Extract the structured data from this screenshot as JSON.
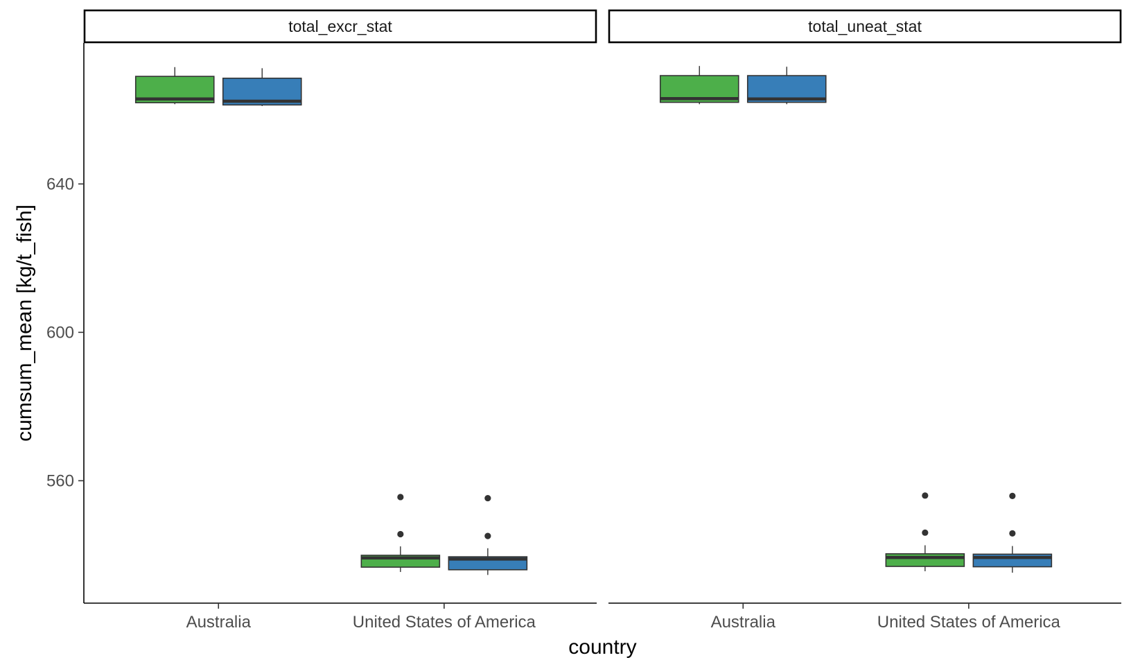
{
  "chart_data": {
    "type": "boxplot",
    "facet_panels": [
      "total_excr_stat",
      "total_uneat_stat"
    ],
    "xlabel": "country",
    "ylabel": "cumsum_mean [kg/t_fish]",
    "categories": [
      "Australia",
      "United States of America"
    ],
    "y_ticks": [
      560,
      600,
      640
    ],
    "ylim": [
      527,
      678
    ],
    "grid": false,
    "legend": "none",
    "series_colors": [
      "#4daf4a",
      "#377eb8"
    ],
    "panels": [
      {
        "facet": "total_excr_stat",
        "boxes": [
          {
            "category": "Australia",
            "series": 0,
            "min": 661.5,
            "q1": 661.9,
            "median": 662.9,
            "q3": 669.0,
            "max": 671.5,
            "outliers": []
          },
          {
            "category": "Australia",
            "series": 1,
            "min": 661.0,
            "q1": 661.3,
            "median": 662.3,
            "q3": 668.5,
            "max": 671.2,
            "outliers": []
          },
          {
            "category": "United States of America",
            "series": 0,
            "min": 535.4,
            "q1": 536.7,
            "median": 539.2,
            "q3": 539.9,
            "max": 542.3,
            "outliers": [
              545.6,
              555.6
            ]
          },
          {
            "category": "United States of America",
            "series": 1,
            "min": 534.6,
            "q1": 536.0,
            "median": 538.9,
            "q3": 539.5,
            "max": 541.8,
            "outliers": [
              545.1,
              555.3
            ]
          }
        ]
      },
      {
        "facet": "total_uneat_stat",
        "boxes": [
          {
            "category": "Australia",
            "series": 0,
            "min": 661.5,
            "q1": 662.0,
            "median": 663.0,
            "q3": 669.2,
            "max": 671.8,
            "outliers": []
          },
          {
            "category": "Australia",
            "series": 1,
            "min": 661.5,
            "q1": 662.0,
            "median": 662.9,
            "q3": 669.2,
            "max": 671.6,
            "outliers": []
          },
          {
            "category": "United States of America",
            "series": 0,
            "min": 535.6,
            "q1": 536.9,
            "median": 539.3,
            "q3": 540.3,
            "max": 542.6,
            "outliers": [
              546.0,
              556.0
            ]
          },
          {
            "category": "United States of America",
            "series": 1,
            "min": 535.2,
            "q1": 536.8,
            "median": 539.3,
            "q3": 540.2,
            "max": 542.4,
            "outliers": [
              545.8,
              555.9
            ]
          }
        ]
      }
    ]
  }
}
